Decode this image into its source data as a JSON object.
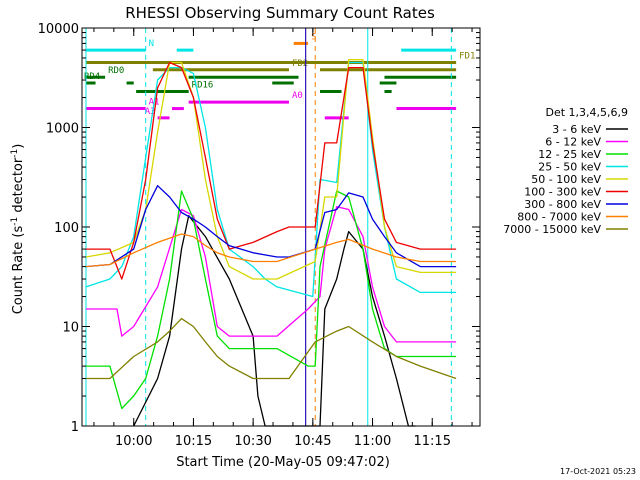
{
  "chart_data": {
    "type": "line",
    "title": "RHESSI Observing Summary Count Rates",
    "xlabel": "Start Time (20-May-05 09:47:02)",
    "ylabel": "Count Rate (s⁻¹ detector⁻¹)",
    "ylabel_main": "Count Rate (s",
    "ylabel_sup1": "-1",
    "ylabel_mid": " detector",
    "ylabel_sup2": "-1",
    "ylabel_end": ")",
    "y_scale": "log",
    "ylim": [
      1,
      10000
    ],
    "xlim": [
      "09:47",
      "11:27"
    ],
    "x_tick_labels": [
      "10:00",
      "10:15",
      "10:30",
      "10:45",
      "11:00",
      "11:15"
    ],
    "y_tick_labels": [
      "1",
      "10",
      "100",
      "1000",
      "10000"
    ],
    "timestamp": "17-Oct-2021 05:23",
    "legend": {
      "header": "Det 1,3,4,5,6,9",
      "placement": "right",
      "entries": [
        {
          "label": "3 - 6 keV",
          "color": "#000000"
        },
        {
          "label": "6 - 12 keV",
          "color": "#ff00ff"
        },
        {
          "label": "12 - 25 keV",
          "color": "#00e000"
        },
        {
          "label": "25 - 50 keV",
          "color": "#00e5e5"
        },
        {
          "label": "50 - 100 keV",
          "color": "#d8d800"
        },
        {
          "label": "100 - 300 keV",
          "color": "#ee0000"
        },
        {
          "label": "300 - 800 keV",
          "color": "#0000dd"
        },
        {
          "label": "800 - 7000 keV",
          "color": "#ff8000"
        },
        {
          "label": "7000 - 15000 keV",
          "color": "#808000"
        }
      ]
    },
    "series": [
      {
        "name": "3 - 6 keV",
        "color": "#000000",
        "x": [
          10.0,
          10.1,
          10.15,
          10.2,
          10.23,
          10.3,
          10.4,
          10.5,
          10.52,
          10.55,
          10.6,
          10.61,
          10.7,
          10.78,
          10.8,
          10.85,
          10.88,
          10.9,
          10.96,
          11.0,
          11.05,
          11.1,
          11.15,
          11.18
        ],
        "y": [
          1,
          3,
          8,
          60,
          130,
          80,
          30,
          8,
          2,
          1,
          1,
          1,
          1,
          1,
          15,
          30,
          60,
          90,
          60,
          20,
          8,
          3,
          1,
          1
        ]
      },
      {
        "name": "6 - 12 keV",
        "color": "#ff00ff",
        "x": [
          9.8,
          9.93,
          9.95,
          10.0,
          10.1,
          10.2,
          10.25,
          10.3,
          10.35,
          10.4,
          10.45,
          10.5,
          10.55,
          10.6,
          10.73,
          10.78,
          10.8,
          10.85,
          10.9,
          10.96,
          11.0,
          11.05,
          11.1,
          11.2,
          11.3,
          11.35
        ],
        "y": [
          15,
          15,
          8,
          10,
          25,
          150,
          130,
          50,
          10,
          8,
          8,
          8,
          8,
          8,
          15,
          20,
          60,
          160,
          150,
          80,
          25,
          10,
          7,
          7,
          7,
          7
        ]
      },
      {
        "name": "12 - 25 keV",
        "color": "#00e000",
        "x": [
          9.8,
          9.9,
          9.95,
          10.0,
          10.05,
          10.1,
          10.15,
          10.2,
          10.25,
          10.3,
          10.35,
          10.4,
          10.5,
          10.55,
          10.6,
          10.73,
          10.76,
          10.78,
          10.85,
          10.9,
          10.96,
          11.0,
          11.05,
          11.1,
          11.2,
          11.35
        ],
        "y": [
          4,
          4,
          1.5,
          2,
          3,
          8,
          30,
          230,
          120,
          30,
          8,
          6,
          6,
          6,
          6,
          4,
          4,
          40,
          230,
          200,
          60,
          15,
          6,
          5,
          5,
          5
        ]
      },
      {
        "name": "25 - 50 keV",
        "color": "#00e5e5",
        "x": [
          9.8,
          9.9,
          9.95,
          10.0,
          10.05,
          10.1,
          10.15,
          10.2,
          10.25,
          10.3,
          10.35,
          10.4,
          10.5,
          10.55,
          10.6,
          10.75,
          10.78,
          10.85,
          10.9,
          10.96,
          11.0,
          11.05,
          11.1,
          11.2,
          11.35
        ],
        "y": [
          25,
          30,
          40,
          80,
          500,
          3000,
          4000,
          4000,
          3500,
          1000,
          150,
          60,
          40,
          30,
          25,
          20,
          300,
          280,
          4500,
          4500,
          600,
          100,
          30,
          22,
          22
        ]
      },
      {
        "name": "50 - 100 keV",
        "color": "#d8d800",
        "x": [
          9.8,
          9.9,
          10.0,
          10.05,
          10.1,
          10.15,
          10.2,
          10.25,
          10.3,
          10.35,
          10.4,
          10.5,
          10.6,
          10.76,
          10.8,
          10.85,
          10.9,
          10.96,
          11.0,
          11.05,
          11.1,
          11.2,
          11.35
        ],
        "y": [
          50,
          55,
          70,
          150,
          900,
          4500,
          4500,
          2000,
          300,
          80,
          40,
          30,
          30,
          45,
          200,
          200,
          4800,
          4800,
          800,
          100,
          40,
          35,
          35
        ]
      },
      {
        "name": "100 - 300 keV",
        "color": "#ee0000",
        "x": [
          9.8,
          9.9,
          9.95,
          10.0,
          10.05,
          10.1,
          10.15,
          10.2,
          10.25,
          10.3,
          10.35,
          10.4,
          10.5,
          10.6,
          10.65,
          10.76,
          10.8,
          10.85,
          10.9,
          10.96,
          11.0,
          11.05,
          11.1,
          11.2,
          11.35
        ],
        "y": [
          60,
          60,
          30,
          70,
          300,
          2500,
          4500,
          4000,
          2000,
          500,
          120,
          60,
          70,
          90,
          100,
          100,
          700,
          700,
          4000,
          4000,
          700,
          120,
          70,
          60,
          60
        ]
      },
      {
        "name": "300 - 800 keV",
        "color": "#0000dd",
        "x": [
          9.8,
          9.9,
          10.0,
          10.05,
          10.1,
          10.15,
          10.2,
          10.25,
          10.3,
          10.35,
          10.4,
          10.5,
          10.6,
          10.65,
          10.76,
          10.8,
          10.85,
          10.9,
          10.96,
          11.0,
          11.05,
          11.1,
          11.2,
          11.35
        ],
        "y": [
          40,
          42,
          60,
          150,
          260,
          200,
          140,
          120,
          100,
          80,
          65,
          55,
          50,
          50,
          60,
          140,
          150,
          220,
          200,
          120,
          80,
          55,
          40,
          40
        ]
      },
      {
        "name": "800 - 7000 keV",
        "color": "#ff8000",
        "x": [
          9.8,
          9.9,
          10.0,
          10.1,
          10.2,
          10.25,
          10.3,
          10.35,
          10.4,
          10.5,
          10.6,
          10.76,
          10.85,
          10.9,
          11.0,
          11.1,
          11.2,
          11.35
        ],
        "y": [
          40,
          42,
          55,
          70,
          85,
          80,
          65,
          55,
          50,
          45,
          45,
          60,
          70,
          75,
          60,
          50,
          45,
          45
        ]
      },
      {
        "name": "7000 - 15000 keV",
        "color": "#808000",
        "x": [
          9.8,
          9.9,
          10.0,
          10.1,
          10.15,
          10.2,
          10.25,
          10.3,
          10.35,
          10.4,
          10.5,
          10.55,
          10.6,
          10.65,
          10.76,
          10.85,
          10.9,
          11.0,
          11.1,
          11.2,
          11.35
        ],
        "y": [
          3,
          3,
          5,
          7,
          9,
          12,
          10,
          7,
          5,
          4,
          3,
          3,
          3,
          3,
          7,
          9,
          10,
          7,
          5,
          4,
          3
        ]
      }
    ],
    "flag_bars": [
      {
        "label": "N",
        "color": "#00e5e5",
        "y": 6000,
        "segments": [
          [
            9.8,
            10.05
          ],
          [
            10.18,
            10.25
          ],
          [
            11.12,
            11.35
          ]
        ]
      },
      {
        "label": "S",
        "color": "#ff8000",
        "y": 7000,
        "segments": [
          [
            10.67,
            10.73
          ]
        ]
      },
      {
        "label": "FD1",
        "color": "#808000",
        "y": 4500,
        "segments": [
          [
            9.8,
            11.35
          ]
        ]
      },
      {
        "label": "FD2",
        "color": "#808000",
        "y": 3800,
        "segments": [
          [
            10.08,
            10.65
          ],
          [
            10.78,
            11.35
          ]
        ]
      },
      {
        "label": "RD0",
        "color": "#007000",
        "y": 3200,
        "segments": [
          [
            9.8,
            9.88
          ],
          [
            10.23,
            10.69
          ],
          [
            11.05,
            11.35
          ]
        ]
      },
      {
        "label": "RD4",
        "color": "#007000",
        "y": 2800,
        "segments": [
          [
            9.8,
            9.84
          ],
          [
            9.97,
            10.0
          ],
          [
            10.58,
            10.67
          ],
          [
            11.03,
            11.1
          ]
        ]
      },
      {
        "label": "RD16",
        "color": "#007000",
        "y": 2300,
        "segments": [
          [
            10.01,
            10.23
          ],
          [
            10.78,
            10.87
          ],
          [
            11.05,
            11.08
          ]
        ]
      },
      {
        "label": "A0",
        "color": "#ee00ee",
        "y": 1800,
        "segments": [
          [
            10.23,
            10.65
          ]
        ]
      },
      {
        "label": "A1",
        "color": "#ee00ee",
        "y": 1550,
        "segments": [
          [
            9.8,
            10.05
          ],
          [
            10.16,
            10.21
          ],
          [
            11.1,
            11.35
          ]
        ]
      },
      {
        "label": "A3",
        "color": "#ee00ee",
        "y": 1250,
        "segments": [
          [
            10.1,
            10.15
          ],
          [
            10.8,
            10.9
          ]
        ]
      }
    ],
    "vertical_markers": [
      {
        "color": "#00e5e5",
        "style": "solid",
        "x": [
          9.8,
          10.98
        ]
      },
      {
        "color": "#00e5e5",
        "style": "dashed",
        "x": [
          10.05,
          11.33
        ]
      },
      {
        "color": "#ff8000",
        "style": "solid",
        "x": [
          10.72
        ]
      },
      {
        "color": "#ff8000",
        "style": "dashed",
        "x": [
          10.76
        ]
      },
      {
        "color": "#0000dd",
        "style": "solid",
        "x": [
          10.72
        ]
      }
    ]
  }
}
